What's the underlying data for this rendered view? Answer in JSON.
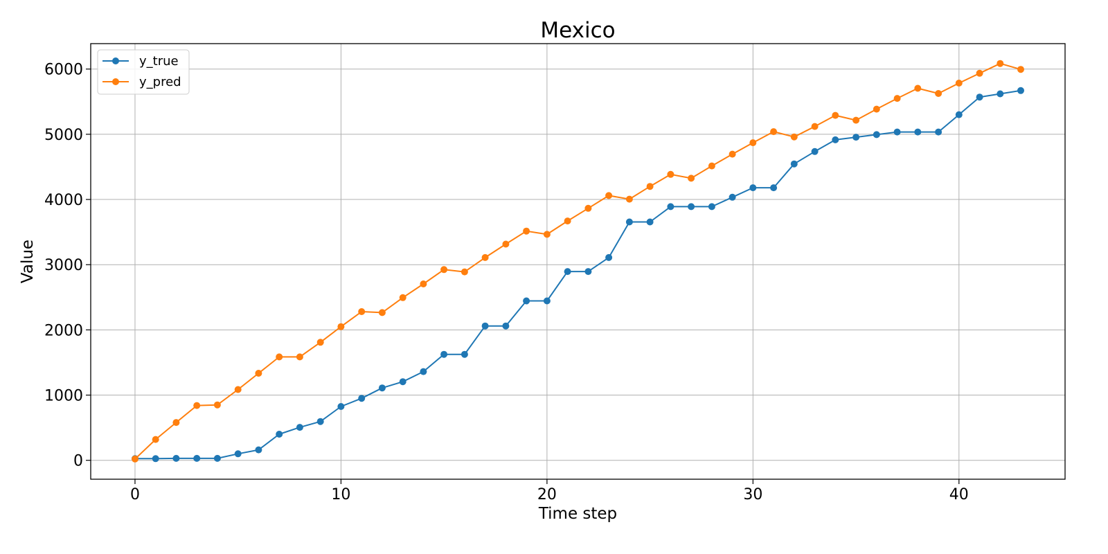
{
  "chart_data": {
    "type": "line",
    "title": "Mexico",
    "xlabel": "Time step",
    "ylabel": "Value",
    "xlim": [
      -2.15,
      45.15
    ],
    "ylim": [
      -290,
      6390
    ],
    "xticks": [
      0,
      10,
      20,
      30,
      40
    ],
    "yticks": [
      0,
      1000,
      2000,
      3000,
      4000,
      5000,
      6000
    ],
    "grid": true,
    "legend_position": "top-left",
    "x": [
      0,
      1,
      2,
      3,
      4,
      5,
      6,
      7,
      8,
      9,
      10,
      11,
      12,
      13,
      14,
      15,
      16,
      17,
      18,
      19,
      20,
      21,
      22,
      23,
      24,
      25,
      26,
      27,
      28,
      29,
      30,
      31,
      32,
      33,
      34,
      35,
      36,
      37,
      38,
      39,
      40,
      41,
      42,
      43
    ],
    "series": [
      {
        "name": "y_true",
        "color": "#1f77b4",
        "values": [
          25,
          25,
          30,
          30,
          30,
          100,
          160,
          400,
          505,
          595,
          825,
          950,
          1110,
          1205,
          1360,
          1625,
          1625,
          2060,
          2060,
          2445,
          2445,
          2895,
          2895,
          3110,
          3655,
          3655,
          3890,
          3890,
          3890,
          4035,
          4180,
          4180,
          4545,
          4735,
          4915,
          4955,
          4995,
          5035,
          5035,
          5035,
          5300,
          5570,
          5620,
          5670
        ]
      },
      {
        "name": "y_pred",
        "color": "#ff7f0e",
        "values": [
          20,
          320,
          580,
          840,
          850,
          1085,
          1335,
          1585,
          1585,
          1810,
          2050,
          2280,
          2265,
          2495,
          2705,
          2925,
          2890,
          3110,
          3315,
          3515,
          3465,
          3670,
          3865,
          4060,
          4005,
          4200,
          4385,
          4325,
          4515,
          4695,
          4870,
          5040,
          4960,
          5120,
          5290,
          5215,
          5385,
          5550,
          5705,
          5625,
          5785,
          5935,
          6085,
          5995
        ]
      }
    ]
  }
}
